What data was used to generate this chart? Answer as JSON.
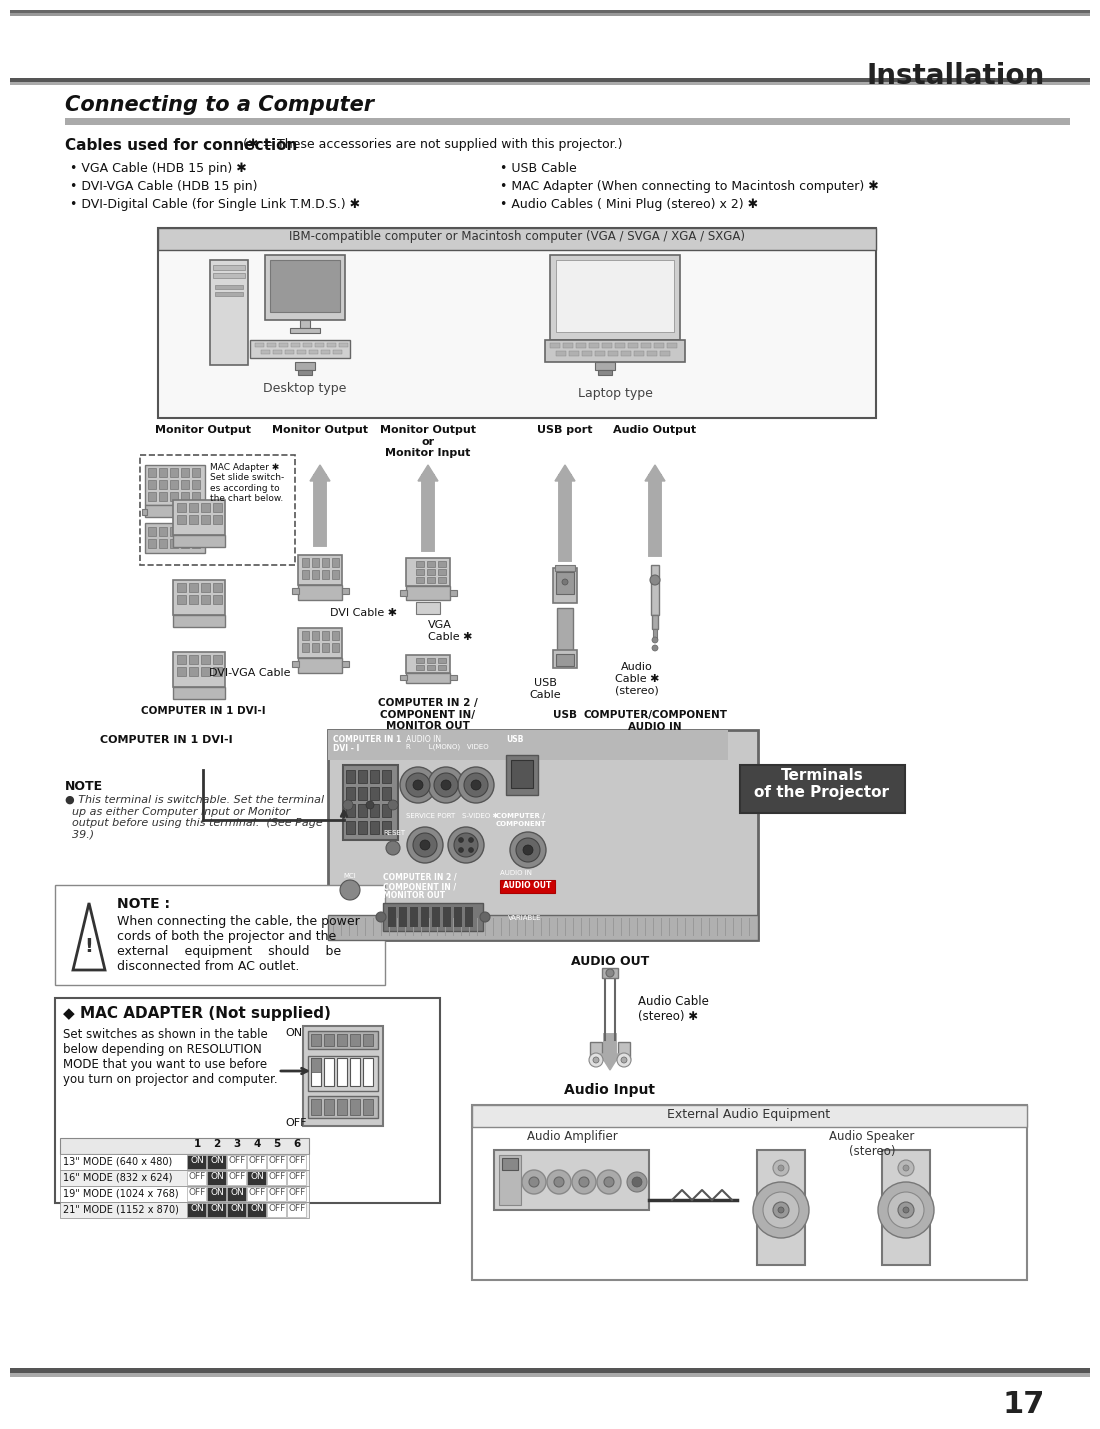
{
  "page_bg": "#ffffff",
  "header_title": "Installation",
  "section_title": "Connecting to a Computer",
  "cables_header": "Cables used for connection",
  "cables_note": "(✱ = These accessories are not supplied with this projector.)",
  "cables_left": [
    "• VGA Cable (HDB 15 pin) ✱",
    "• DVI-VGA Cable (HDB 15 pin)",
    "• DVI-Digital Cable (for Single Link T.M.D.S.) ✱"
  ],
  "cables_right": [
    "• USB Cable",
    "• MAC Adapter (When connecting to Macintosh computer) ✱",
    "• Audio Cables ( Mini Plug (stereo) x 2) ✱"
  ],
  "computer_box_label": "IBM-compatible computer or Macintosh computer (VGA / SVGA / XGA / SXGA)",
  "desktop_label": "Desktop type",
  "laptop_label": "Laptop type",
  "monitor_out_labels": [
    "Monitor Output",
    "Monitor Output",
    "Monitor Output\nor\nMonitor Input",
    "USB port",
    "Audio Output"
  ],
  "connector_labels": [
    "DVI-VGA Cable",
    "DVI Cable ✱",
    "VGA\nCable ✱",
    "USB\nCable",
    "Audio\nCable ✱\n(stereo)"
  ],
  "port_labels_bottom": [
    "COMPUTER IN 1 DVI-I",
    "COMPUTER IN 2 /\nCOMPONENT IN/\nMONITOR OUT",
    "USB",
    "COMPUTER/COMPONENT\nAUDIO IN"
  ],
  "mac_adapter_label": "MAC Adapter ✱\nSet slide switch-\nes according to\nthe chart below.",
  "computer_in1_label": "COMPUTER IN 1 DVI-I",
  "note_label": "NOTE",
  "note_text": "● This terminal is switchable. Set the terminal\n  up as either Computer input or Monitor\n  output before using this terminal.  (See Page\n  39.)",
  "terminals_label": "Terminals\nof the Projector",
  "note2_title": "NOTE :",
  "note2_text": "When connecting the cable, the power\ncords of both the projector and the\nexternal    equipment    should    be\ndisconnected from AC outlet.",
  "mac_adapter_box_title": "◆ MAC ADAPTER (Not supplied)",
  "mac_adapter_box_text": "Set switches as shown in the table\nbelow depending on RESOLUTION\nMODE that you want to use before\nyou turn on projector and computer.",
  "on_label": "ON",
  "off_label": "OFF",
  "switch_rows": [
    {
      "label": "13\" MODE (640 x 480)",
      "values": [
        "ON",
        "ON",
        "OFF",
        "OFF",
        "OFF",
        "OFF"
      ]
    },
    {
      "label": "16\" MODE (832 x 624)",
      "values": [
        "OFF",
        "ON",
        "OFF",
        "ON",
        "OFF",
        "OFF"
      ]
    },
    {
      "label": "19\" MODE (1024 x 768)",
      "values": [
        "OFF",
        "ON",
        "ON",
        "OFF",
        "OFF",
        "OFF"
      ]
    },
    {
      "label": "21\" MODE (1152 x 870)",
      "values": [
        "ON",
        "ON",
        "ON",
        "ON",
        "OFF",
        "OFF"
      ]
    }
  ],
  "switch_cols": [
    "1",
    "2",
    "3",
    "4",
    "5",
    "6"
  ],
  "audio_out_label": "AUDIO OUT",
  "audio_cable_label": "Audio Cable\n(stereo) ✱",
  "audio_input_label": "Audio Input",
  "ext_audio_label": "External Audio Equipment",
  "audio_amp_label": "Audio Amplifier",
  "audio_speaker_label": "Audio Speaker\n(stereo)",
  "page_number": "17"
}
